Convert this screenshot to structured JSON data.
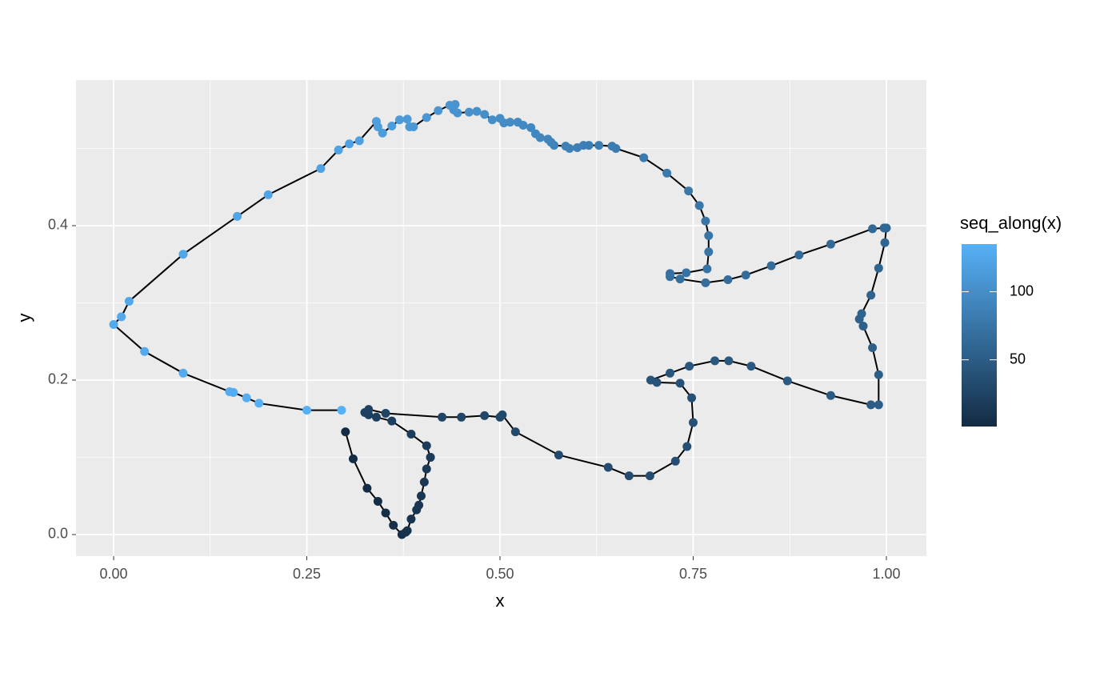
{
  "chart_data": {
    "type": "scatter-path",
    "x_label": "x",
    "y_label": "y",
    "legend_title": "seq_along(x)",
    "color_low": "#132B43",
    "color_high": "#56B1F7",
    "line_color": "#000000",
    "panel_color": "#EBEBEB",
    "grid": true,
    "colorbar_ticks": [
      50,
      100
    ],
    "xlim": [
      -0.0487,
      1.0518
    ],
    "ylim": [
      -0.028,
      0.5886
    ],
    "xticks": [
      {
        "value": 0,
        "label": "0.00"
      },
      {
        "value": 0.25,
        "label": "0.25"
      },
      {
        "value": 0.5,
        "label": "0.50"
      },
      {
        "value": 0.75,
        "label": "0.75"
      },
      {
        "value": 1,
        "label": "1.00"
      }
    ],
    "yticks": [
      {
        "value": 0,
        "label": "0.0"
      },
      {
        "value": 0.2,
        "label": "0.2"
      },
      {
        "value": 0.4,
        "label": "0.4"
      }
    ],
    "x": [
      0.3,
      0.31,
      0.328,
      0.342,
      0.352,
      0.362,
      0.373,
      0.378,
      0.38,
      0.385,
      0.392,
      0.395,
      0.398,
      0.402,
      0.405,
      0.41,
      0.41,
      0.405,
      0.385,
      0.36,
      0.34,
      0.33,
      0.325,
      0.33,
      0.352,
      0.425,
      0.45,
      0.48,
      0.5,
      0.503,
      0.52,
      0.576,
      0.64,
      0.667,
      0.694,
      0.727,
      0.742,
      0.75,
      0.748,
      0.733,
      0.703,
      0.695,
      0.72,
      0.745,
      0.778,
      0.796,
      0.825,
      0.872,
      0.928,
      0.98,
      0.99,
      0.99,
      0.982,
      0.97,
      0.965,
      0.968,
      0.98,
      0.99,
      0.998,
      1.0,
      0.997,
      0.982,
      0.928,
      0.887,
      0.851,
      0.818,
      0.795,
      0.766,
      0.733,
      0.72,
      0.72,
      0.741,
      0.768,
      0.77,
      0.77,
      0.766,
      0.758,
      0.744,
      0.716,
      0.686,
      0.65,
      0.645,
      0.628,
      0.615,
      0.608,
      0.6,
      0.59,
      0.585,
      0.57,
      0.566,
      0.562,
      0.552,
      0.546,
      0.54,
      0.53,
      0.523,
      0.513,
      0.505,
      0.5,
      0.49,
      0.48,
      0.47,
      0.46,
      0.445,
      0.44,
      0.442,
      0.435,
      0.42,
      0.405,
      0.388,
      0.383,
      0.38,
      0.37,
      0.36,
      0.348,
      0.342,
      0.34,
      0.318,
      0.305,
      0.291,
      0.268,
      0.2,
      0.16,
      0.09,
      0.02,
      0.01,
      0.0,
      0.04,
      0.09,
      0.15,
      0.155,
      0.172,
      0.188,
      0.25,
      0.295
    ],
    "y": [
      0.133,
      0.098,
      0.06,
      0.043,
      0.028,
      0.012,
      0.0,
      0.003,
      0.005,
      0.02,
      0.032,
      0.038,
      0.05,
      0.068,
      0.085,
      0.1,
      0.1,
      0.115,
      0.13,
      0.147,
      0.152,
      0.155,
      0.158,
      0.162,
      0.157,
      0.152,
      0.152,
      0.154,
      0.152,
      0.155,
      0.133,
      0.103,
      0.087,
      0.076,
      0.076,
      0.095,
      0.114,
      0.145,
      0.177,
      0.196,
      0.197,
      0.2,
      0.209,
      0.218,
      0.225,
      0.225,
      0.218,
      0.199,
      0.18,
      0.168,
      0.168,
      0.207,
      0.242,
      0.27,
      0.279,
      0.286,
      0.31,
      0.345,
      0.378,
      0.397,
      0.397,
      0.396,
      0.376,
      0.362,
      0.348,
      0.336,
      0.33,
      0.326,
      0.331,
      0.334,
      0.338,
      0.339,
      0.344,
      0.366,
      0.387,
      0.406,
      0.426,
      0.445,
      0.468,
      0.488,
      0.5,
      0.503,
      0.504,
      0.504,
      0.504,
      0.501,
      0.5,
      0.503,
      0.504,
      0.508,
      0.512,
      0.514,
      0.519,
      0.527,
      0.53,
      0.534,
      0.534,
      0.533,
      0.539,
      0.537,
      0.544,
      0.548,
      0.547,
      0.546,
      0.55,
      0.557,
      0.556,
      0.549,
      0.54,
      0.528,
      0.528,
      0.538,
      0.537,
      0.529,
      0.52,
      0.528,
      0.535,
      0.51,
      0.506,
      0.498,
      0.474,
      0.44,
      0.412,
      0.363,
      0.302,
      0.282,
      0.272,
      0.237,
      0.209,
      0.185,
      0.184,
      0.177,
      0.17,
      0.161,
      0.161
    ]
  }
}
